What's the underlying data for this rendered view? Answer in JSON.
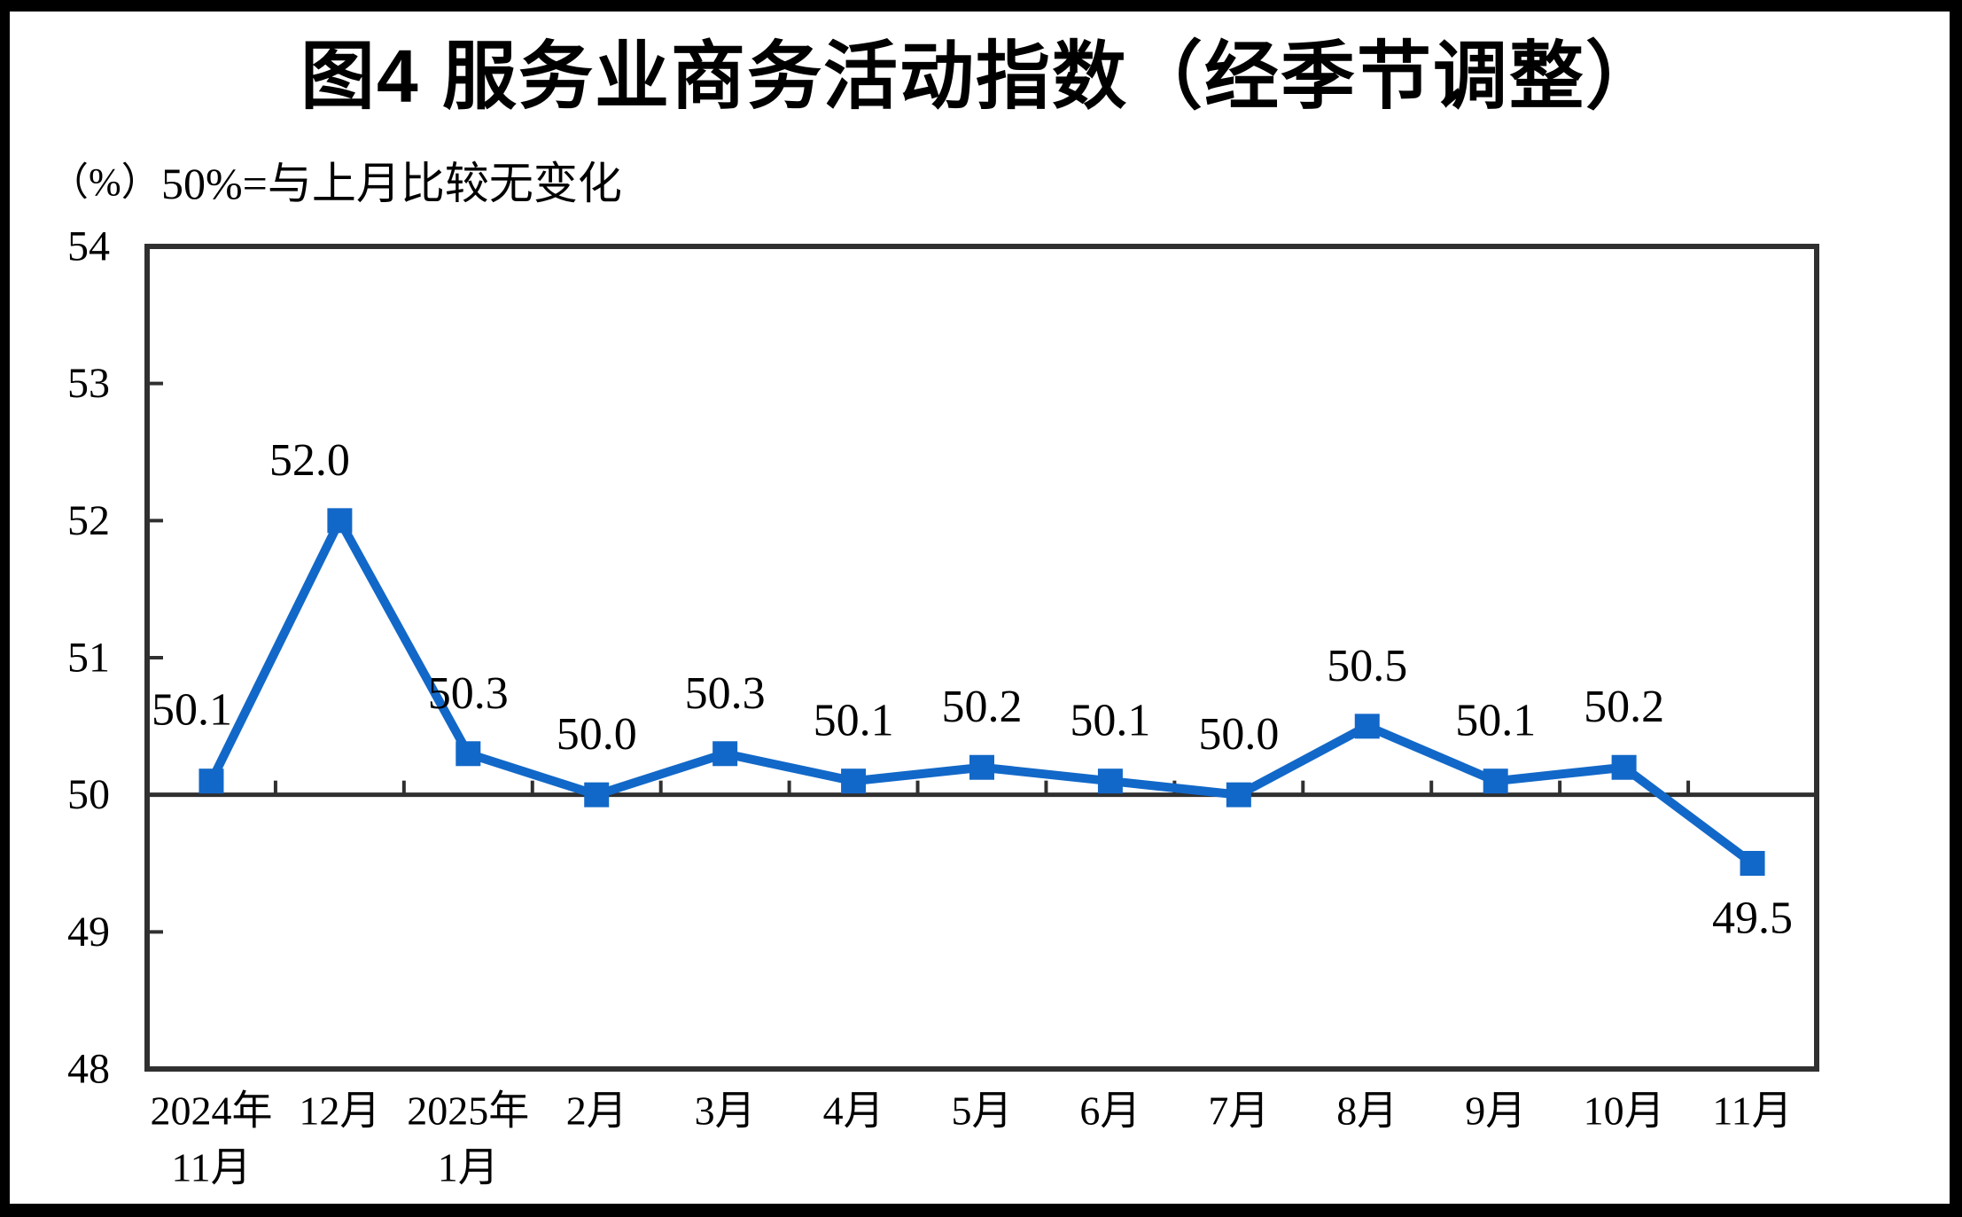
{
  "page": {
    "background": "#ffffff",
    "frame_color": "#000000"
  },
  "chart_data": {
    "type": "line",
    "title": "图4 服务业商务活动指数（经季节调整）",
    "unit_label": "（%）",
    "subtitle": "50%=与上月比较无变化",
    "categories": [
      [
        "2024年",
        "11月"
      ],
      [
        "12月"
      ],
      [
        "2025年",
        "1月"
      ],
      [
        "2月"
      ],
      [
        "3月"
      ],
      [
        "4月"
      ],
      [
        "5月"
      ],
      [
        "6月"
      ],
      [
        "7月"
      ],
      [
        "8月"
      ],
      [
        "9月"
      ],
      [
        "10月"
      ],
      [
        "11月"
      ]
    ],
    "series": [
      {
        "name": "服务业商务活动指数",
        "values": [
          50.1,
          52.0,
          50.3,
          50.0,
          50.3,
          50.1,
          50.2,
          50.1,
          50.0,
          50.5,
          50.1,
          50.2,
          49.5
        ],
        "data_labels": [
          "50.1",
          "52.0",
          "50.3",
          "50.0",
          "50.3",
          "50.1",
          "50.2",
          "50.1",
          "50.0",
          "50.5",
          "50.1",
          "50.2",
          "49.5"
        ]
      }
    ],
    "ylabel": "%",
    "xlabel": "",
    "ylim": [
      48,
      54
    ],
    "y_ticks": [
      54,
      53,
      52,
      51,
      50,
      49,
      48
    ],
    "reference_value": 50,
    "grid": "off",
    "legend": "none",
    "line_color": "#1268C8",
    "marker_color": "#1268C8",
    "marker_shape": "square",
    "axis_color": "#303030",
    "text_color": "#000000"
  }
}
